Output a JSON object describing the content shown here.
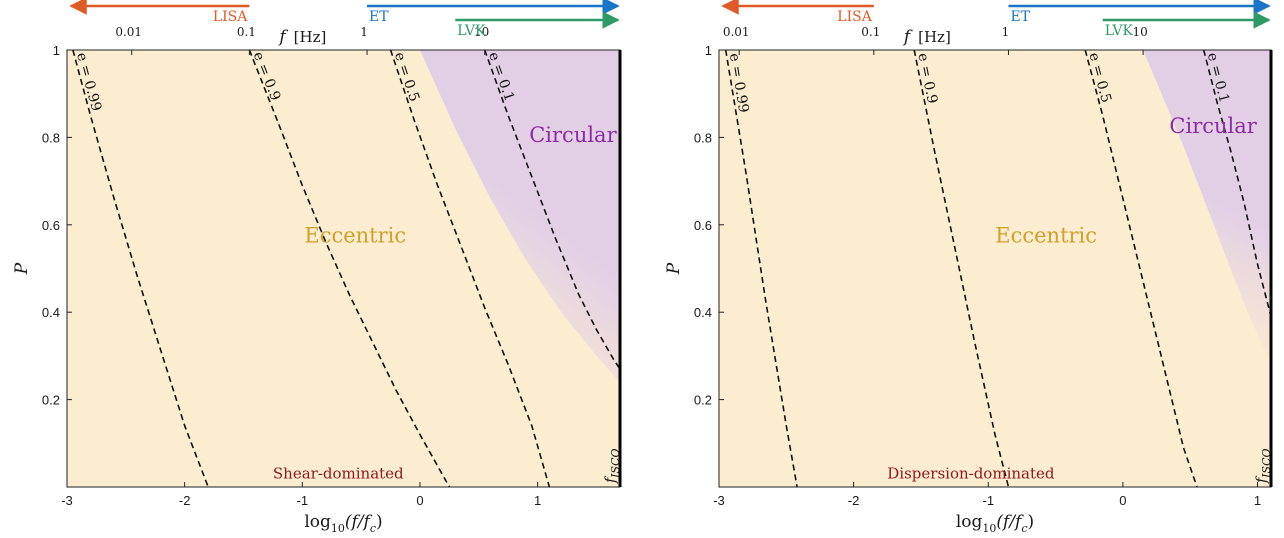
{
  "colors": {
    "eccentric": "#fcecd0",
    "circular": "#e2cfe6",
    "eccentric_text": "#d0a02a",
    "circular_text": "#8e2aa6",
    "annotation_text": "#8b1a1a",
    "lisa": "#e05a27",
    "et": "#1a75c9",
    "lvk": "#2f9a66",
    "curve": "#111111"
  },
  "shared": {
    "top_axis_label": "f",
    "top_axis_unit": "[Hz]",
    "x_label_base": "log",
    "x_label_sub": "10",
    "x_label_arg": "(f/f",
    "x_label_arg_sub": "c",
    "x_label_close": ")",
    "y_label": "P",
    "region_eccentric": "Eccentric",
    "region_circular": "Circular",
    "fisco_main": "f",
    "fisco_sub": "ISCO"
  },
  "chart_data": [
    {
      "type": "line",
      "panel": "left",
      "xlim": [
        -3,
        1.7
      ],
      "ylim": [
        0,
        1
      ],
      "x_ticks": [
        -3,
        -2,
        -1,
        0,
        1
      ],
      "x_tick_labels": [
        "-3",
        "-2",
        "-1",
        "0",
        "1"
      ],
      "y_ticks": [
        0.2,
        0.4,
        0.6,
        0.8,
        1
      ],
      "y_tick_labels": [
        "0.2",
        "0.4",
        "0.6",
        "0.8",
        "1"
      ],
      "top_ticks": [
        {
          "label": "0.01",
          "x": -2.45
        },
        {
          "label": "0.1",
          "x": -1.45
        },
        {
          "label": "1",
          "x": -0.45
        },
        {
          "label": "10",
          "x": 0.55
        }
      ],
      "detectors": [
        {
          "name": "LISA",
          "x_start": -3,
          "x_end": -1.45,
          "direction": "left",
          "color": "lisa"
        },
        {
          "name": "ET",
          "x_start": -0.45,
          "x_end": 1.7,
          "direction": "right",
          "color": "et"
        },
        {
          "name": "LVK",
          "x_start": 0.3,
          "x_end": 1.7,
          "direction": "right",
          "color": "lvk"
        }
      ],
      "series": [
        {
          "name": "e = 0.99",
          "x": [
            -2.95,
            -2.8,
            -2.6,
            -2.4,
            -2.2,
            -2.0,
            -1.8
          ],
          "y": [
            1.0,
            0.85,
            0.66,
            0.48,
            0.31,
            0.14,
            0.0
          ]
        },
        {
          "name": "e = 0.9",
          "x": [
            -1.45,
            -1.2,
            -1.0,
            -0.8,
            -0.6,
            -0.4,
            -0.2,
            0.0,
            0.25
          ],
          "y": [
            1.0,
            0.83,
            0.69,
            0.56,
            0.44,
            0.33,
            0.22,
            0.12,
            0.0
          ]
        },
        {
          "name": "e = 0.5",
          "x": [
            -0.25,
            -0.05,
            0.15,
            0.35,
            0.55,
            0.75,
            0.95,
            1.1
          ],
          "y": [
            1.0,
            0.84,
            0.69,
            0.55,
            0.41,
            0.28,
            0.14,
            0.0
          ]
        },
        {
          "name": "e = 0.1",
          "x": [
            0.55,
            0.75,
            0.95,
            1.15,
            1.35,
            1.5,
            1.65,
            1.7
          ],
          "y": [
            1.0,
            0.85,
            0.71,
            0.57,
            0.44,
            0.36,
            0.29,
            0.27
          ]
        }
      ],
      "circular_boundary": {
        "x": [
          0.0,
          0.3,
          0.6,
          0.9,
          1.2,
          1.5,
          1.7
        ],
        "y": [
          1.0,
          0.82,
          0.66,
          0.52,
          0.4,
          0.3,
          0.24
        ]
      },
      "annotation": {
        "text": "Shear-dominated",
        "x": -1.25,
        "y": 0.02
      },
      "eccentric_label_pos": {
        "x": -0.55,
        "y": 0.56
      },
      "circular_label_pos": {
        "x": 1.3,
        "y": 0.79
      }
    },
    {
      "type": "line",
      "panel": "right",
      "xlim": [
        -3,
        1.1
      ],
      "ylim": [
        0,
        1
      ],
      "x_ticks": [
        -3,
        -2,
        -1,
        0,
        1
      ],
      "x_tick_labels": [
        "-3",
        "-2",
        "-1",
        "0",
        "1"
      ],
      "y_ticks": [
        0.2,
        0.4,
        0.6,
        0.8,
        1
      ],
      "y_tick_labels": [
        "0.2",
        "0.4",
        "0.6",
        "0.8",
        "1"
      ],
      "top_ticks": [
        {
          "label": "0.01",
          "x": -2.85
        },
        {
          "label": "0.1",
          "x": -1.85
        },
        {
          "label": "1",
          "x": -0.85
        },
        {
          "label": "10",
          "x": 0.15
        }
      ],
      "detectors": [
        {
          "name": "LISA",
          "x_start": -3,
          "x_end": -1.85,
          "direction": "left",
          "color": "lisa"
        },
        {
          "name": "ET",
          "x_start": -0.85,
          "x_end": 1.1,
          "direction": "right",
          "color": "et"
        },
        {
          "name": "LVK",
          "x_start": -0.15,
          "x_end": 1.1,
          "direction": "right",
          "color": "lvk"
        }
      ],
      "series": [
        {
          "name": "e = 0.99",
          "x": [
            -2.95,
            -2.8,
            -2.65,
            -2.5,
            -2.42
          ],
          "y": [
            1.0,
            0.72,
            0.42,
            0.14,
            0.0
          ]
        },
        {
          "name": "e = 0.9",
          "x": [
            -1.55,
            -1.4,
            -1.25,
            -1.1,
            -0.95,
            -0.85
          ],
          "y": [
            1.0,
            0.77,
            0.55,
            0.33,
            0.12,
            0.0
          ]
        },
        {
          "name": "e = 0.5",
          "x": [
            -0.28,
            -0.15,
            0.0,
            0.15,
            0.3,
            0.45,
            0.55
          ],
          "y": [
            1.0,
            0.85,
            0.66,
            0.47,
            0.28,
            0.09,
            0.0
          ]
        },
        {
          "name": "e = 0.1",
          "x": [
            0.6,
            0.7,
            0.8,
            0.9,
            1.0,
            1.1
          ],
          "y": [
            1.0,
            0.88,
            0.77,
            0.65,
            0.51,
            0.39
          ]
        }
      ],
      "circular_boundary": {
        "x": [
          0.15,
          0.45,
          0.7,
          0.9,
          1.1
        ],
        "y": [
          1.0,
          0.78,
          0.58,
          0.42,
          0.28
        ]
      },
      "annotation": {
        "text": "Dispersion-dominated",
        "x": -1.75,
        "y": 0.02
      },
      "eccentric_label_pos": {
        "x": -0.57,
        "y": 0.56
      },
      "circular_label_pos": {
        "x": 0.67,
        "y": 0.81
      }
    }
  ]
}
